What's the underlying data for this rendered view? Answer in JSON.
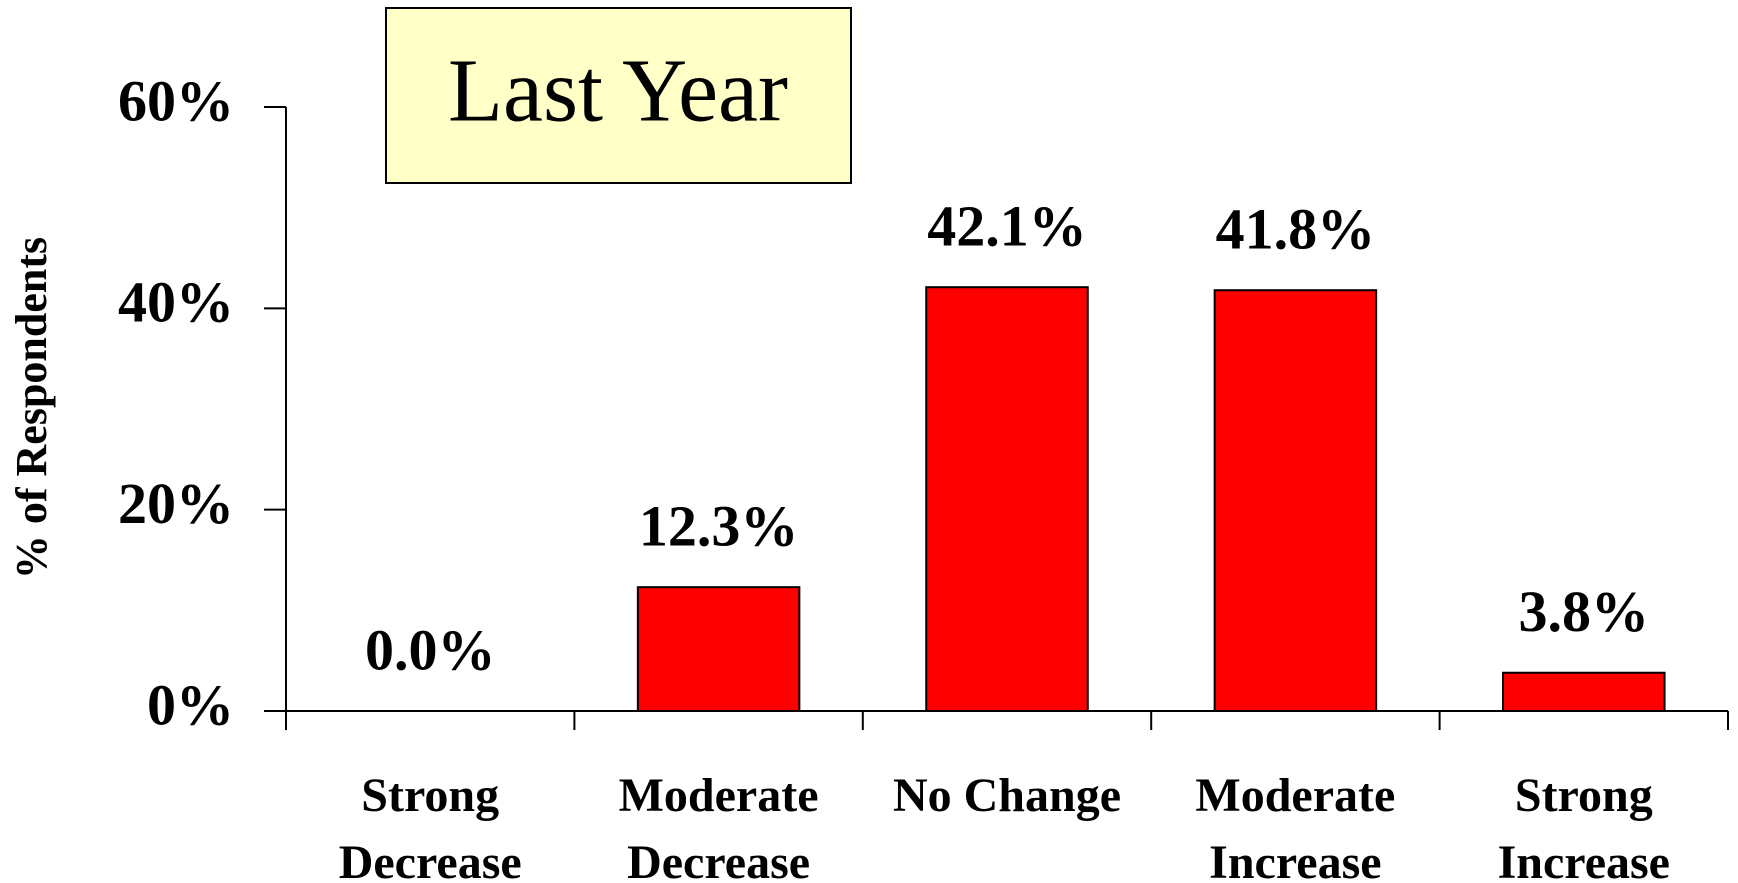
{
  "chart_data": {
    "type": "bar",
    "title": "Last Year",
    "y_label": "% of Respondents",
    "categories": [
      "Strong Decrease",
      "Moderate Decrease",
      "No Change",
      "Moderate Increase",
      "Strong Increase"
    ],
    "values": [
      0,
      12.3,
      42.1,
      41.8,
      3.8
    ],
    "value_labels": [
      "0.0%",
      "12.3%",
      "42.1%",
      "41.8%",
      "3.8%"
    ],
    "color": "#ff0000",
    "ylim": [
      0,
      60
    ],
    "yticks": [
      {
        "value": 0,
        "label": "0%"
      },
      {
        "value": 20,
        "label": "20%"
      },
      {
        "value": 40,
        "label": "40%"
      },
      {
        "value": 60,
        "label": "60%"
      }
    ]
  }
}
